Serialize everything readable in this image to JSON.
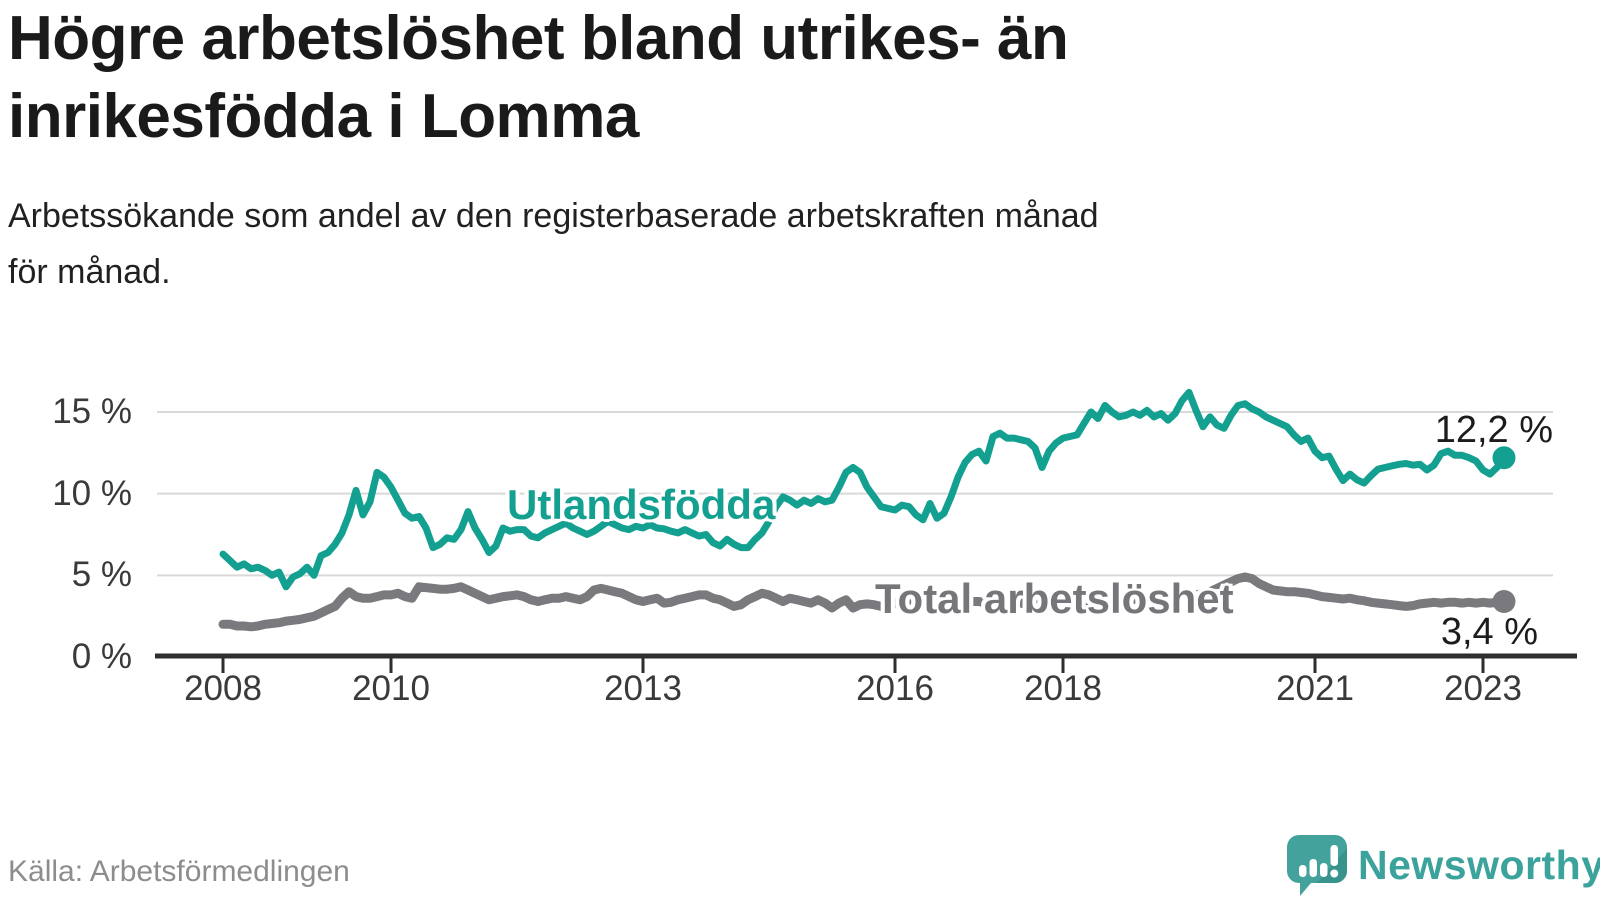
{
  "header": {
    "title_line1": "Högre arbetslöshet bland utrikes- än",
    "title_line2": "inrikesfödda i Lomma",
    "subtitle_line1": "Arbetssökande som andel av den registerbaserade arbetskraften månad",
    "subtitle_line2": "för månad."
  },
  "chart_data": {
    "type": "line",
    "title": "Högre arbetslöshet bland utrikes- än inrikesfödda i Lomma",
    "subtitle": "Arbetssökande som andel av den registerbaserade arbetskraften månad för månad.",
    "x_start": "2008-01",
    "x_frequency": "monthly",
    "ylim": [
      0,
      16.5
    ],
    "grid": "horizontal",
    "yticks": {
      "values": [
        0,
        5,
        10,
        15
      ],
      "labels": [
        "0 %",
        "5 %",
        "10 %",
        "15 %"
      ]
    },
    "xticks": {
      "years": [
        2008,
        2010,
        2013,
        2016,
        2018,
        2021,
        2023
      ],
      "labels": [
        "2008",
        "2010",
        "2013",
        "2016",
        "2018",
        "2021",
        "2023"
      ]
    },
    "series": [
      {
        "name": "Utlandsfödda",
        "color": "#14a090",
        "end_label": "12,2 %",
        "last_value": 12.2,
        "values": [
          6.3,
          5.9,
          5.5,
          5.7,
          5.4,
          5.5,
          5.3,
          5.0,
          5.2,
          4.3,
          4.9,
          5.1,
          5.5,
          5.0,
          6.2,
          6.4,
          6.9,
          7.6,
          8.7,
          10.2,
          8.7,
          9.5,
          11.3,
          11.0,
          10.4,
          9.6,
          8.8,
          8.5,
          8.6,
          7.9,
          6.7,
          6.9,
          7.3,
          7.2,
          7.8,
          8.9,
          7.9,
          7.2,
          6.4,
          6.8,
          7.9,
          7.7,
          7.8,
          7.8,
          7.4,
          7.3,
          7.6,
          7.8,
          8.0,
          8.2,
          7.9,
          7.7,
          7.5,
          7.7,
          8.0,
          8.3,
          8.1,
          7.9,
          7.8,
          8.0,
          7.9,
          8.1,
          7.9,
          7.85,
          7.7,
          7.6,
          7.8,
          7.6,
          7.4,
          7.5,
          7.0,
          6.8,
          7.2,
          6.9,
          6.7,
          6.7,
          7.2,
          7.6,
          8.3,
          9.2,
          9.8,
          9.6,
          9.3,
          9.6,
          9.4,
          9.7,
          9.5,
          9.6,
          10.4,
          11.3,
          11.6,
          11.3,
          10.4,
          9.8,
          9.2,
          9.1,
          9.0,
          9.3,
          9.2,
          8.7,
          8.4,
          9.4,
          8.5,
          8.8,
          9.8,
          11.0,
          11.9,
          12.4,
          12.6,
          12.0,
          13.5,
          13.7,
          13.4,
          13.4,
          13.3,
          13.2,
          12.8,
          11.6,
          12.6,
          13.1,
          13.4,
          13.5,
          13.6,
          14.3,
          15.0,
          14.6,
          15.4,
          15.0,
          14.7,
          14.8,
          15.0,
          14.8,
          15.1,
          14.7,
          14.9,
          14.5,
          14.9,
          15.7,
          16.2,
          15.1,
          14.1,
          14.7,
          14.2,
          14.0,
          14.8,
          15.4,
          15.5,
          15.2,
          15.0,
          14.7,
          14.5,
          14.3,
          14.1,
          13.6,
          13.2,
          13.4,
          12.6,
          12.2,
          12.3,
          11.5,
          10.8,
          11.2,
          10.85,
          10.65,
          11.1,
          11.5,
          11.6,
          11.7,
          11.8,
          11.85,
          11.75,
          11.8,
          11.45,
          11.75,
          12.45,
          12.6,
          12.35,
          12.35,
          12.2,
          12.0,
          11.45,
          11.2,
          11.6,
          12.2
        ]
      },
      {
        "name": "Total arbetslöshet",
        "color": "#7a7a7e",
        "end_label": "3,4 %",
        "last_value": 3.4,
        "values": [
          2.0,
          2.0,
          1.9,
          1.9,
          1.85,
          1.9,
          2.0,
          2.05,
          2.1,
          2.2,
          2.25,
          2.3,
          2.4,
          2.5,
          2.7,
          2.9,
          3.1,
          3.6,
          4.0,
          3.7,
          3.6,
          3.6,
          3.7,
          3.8,
          3.8,
          3.9,
          3.7,
          3.6,
          4.3,
          4.25,
          4.2,
          4.15,
          4.15,
          4.2,
          4.3,
          4.1,
          3.9,
          3.7,
          3.5,
          3.6,
          3.7,
          3.75,
          3.8,
          3.7,
          3.5,
          3.4,
          3.5,
          3.6,
          3.6,
          3.7,
          3.6,
          3.5,
          3.7,
          4.1,
          4.2,
          4.1,
          4.0,
          3.9,
          3.7,
          3.5,
          3.4,
          3.5,
          3.6,
          3.3,
          3.35,
          3.5,
          3.6,
          3.7,
          3.8,
          3.8,
          3.6,
          3.5,
          3.3,
          3.1,
          3.2,
          3.5,
          3.7,
          3.9,
          3.8,
          3.6,
          3.4,
          3.6,
          3.5,
          3.4,
          3.3,
          3.5,
          3.3,
          3.0,
          3.3,
          3.5,
          3.0,
          3.2,
          3.25,
          3.2,
          3.1,
          3.2,
          3.3,
          3.4,
          3.3,
          3.2,
          3.3,
          3.4,
          3.2,
          3.1,
          3.2,
          3.3,
          3.3,
          3.4,
          3.4,
          3.3,
          3.2,
          3.3,
          3.4,
          3.5,
          3.3,
          3.2,
          3.3,
          3.4,
          3.4,
          3.5,
          3.5,
          3.4,
          3.3,
          3.4,
          3.5,
          3.5,
          3.4,
          3.3,
          3.4,
          3.5,
          3.5,
          3.6,
          3.6,
          3.5,
          3.5,
          3.6,
          3.7,
          3.8,
          3.7,
          3.8,
          3.9,
          4.0,
          4.2,
          4.4,
          4.6,
          4.8,
          4.9,
          4.8,
          4.5,
          4.3,
          4.1,
          4.05,
          4.0,
          4.0,
          3.95,
          3.9,
          3.8,
          3.7,
          3.65,
          3.6,
          3.55,
          3.6,
          3.5,
          3.45,
          3.35,
          3.3,
          3.25,
          3.2,
          3.15,
          3.1,
          3.15,
          3.25,
          3.3,
          3.35,
          3.3,
          3.35,
          3.35,
          3.3,
          3.35,
          3.3,
          3.35,
          3.3,
          3.35,
          3.4
        ]
      }
    ]
  },
  "source": {
    "text": "Källa: Arbetsförmedlingen"
  },
  "logo": {
    "text": "Newsworthy",
    "icon": "newsworthy-speech-bubble-bar-chart-icon",
    "icon_color": "#43a39c",
    "icon_fold_color": "#35908a",
    "text_color": "#3ba39c"
  }
}
